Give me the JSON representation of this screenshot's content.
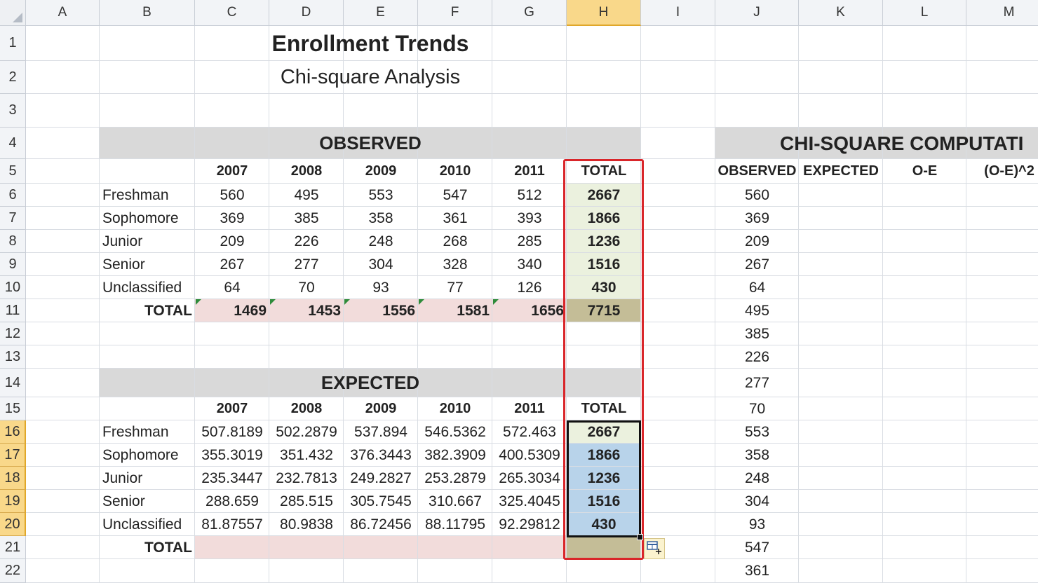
{
  "columns": [
    "A",
    "B",
    "C",
    "D",
    "E",
    "F",
    "G",
    "H",
    "I",
    "J",
    "K",
    "L",
    "M"
  ],
  "selected_column": "H",
  "rows": [
    "1",
    "2",
    "3",
    "4",
    "5",
    "6",
    "7",
    "8",
    "9",
    "10",
    "11",
    "12",
    "13",
    "14",
    "15",
    "16",
    "17",
    "18",
    "19",
    "20",
    "21",
    "22"
  ],
  "selected_rows": [
    "16",
    "17",
    "18",
    "19",
    "20"
  ],
  "title": "Enrollment Trends",
  "subtitle": "Chi-square Analysis",
  "observed": {
    "heading": "OBSERVED",
    "headers": [
      "2007",
      "2008",
      "2009",
      "2010",
      "2011",
      "TOTAL"
    ],
    "rows": [
      {
        "label": "Freshman",
        "values": [
          "560",
          "495",
          "553",
          "547",
          "512"
        ],
        "total": "2667"
      },
      {
        "label": "Sophomore",
        "values": [
          "369",
          "385",
          "358",
          "361",
          "393"
        ],
        "total": "1866"
      },
      {
        "label": "Junior",
        "values": [
          "209",
          "226",
          "248",
          "268",
          "285"
        ],
        "total": "1236"
      },
      {
        "label": "Senior",
        "values": [
          "267",
          "277",
          "304",
          "328",
          "340"
        ],
        "total": "1516"
      },
      {
        "label": "Unclassified",
        "values": [
          "64",
          "70",
          "93",
          "77",
          "126"
        ],
        "total": "430"
      }
    ],
    "total_label": "TOTAL",
    "col_totals": [
      "1469",
      "1453",
      "1556",
      "1581",
      "1656"
    ],
    "grand_total": "7715"
  },
  "expected": {
    "heading": "EXPECTED",
    "headers": [
      "2007",
      "2008",
      "2009",
      "2010",
      "2011",
      "TOTAL"
    ],
    "rows": [
      {
        "label": "Freshman",
        "values": [
          "507.8189",
          "502.2879",
          "537.894",
          "546.5362",
          "572.463"
        ],
        "total": "2667"
      },
      {
        "label": "Sophomore",
        "values": [
          "355.3019",
          "351.432",
          "376.3443",
          "382.3909",
          "400.5309"
        ],
        "total": "1866"
      },
      {
        "label": "Junior",
        "values": [
          "235.3447",
          "232.7813",
          "249.2827",
          "253.2879",
          "265.3034"
        ],
        "total": "1236"
      },
      {
        "label": "Senior",
        "values": [
          "288.659",
          "285.515",
          "305.7545",
          "310.667",
          "325.4045"
        ],
        "total": "1516"
      },
      {
        "label": "Unclassified",
        "values": [
          "81.87557",
          "80.9838",
          "86.72456",
          "88.11795",
          "92.29812"
        ],
        "total": "430"
      }
    ],
    "total_label": "TOTAL"
  },
  "chi": {
    "heading": "CHI-SQUARE COMPUTATI",
    "headers": [
      "OBSERVED",
      "EXPECTED",
      "O-E",
      "(O-E)^2"
    ],
    "observed_values": [
      "560",
      "369",
      "209",
      "267",
      "64",
      "495",
      "385",
      "226",
      "277",
      "70",
      "553",
      "358",
      "248",
      "304",
      "93",
      "547",
      "361"
    ]
  },
  "colors": {
    "header_gray": "#d9d9d9",
    "total_pink": "#f2dcdb",
    "total_tan": "#c4bd97",
    "total_col_green": "#ebf1de",
    "selection_blue": "#b8d3ea",
    "highlight_red": "#d9262a"
  },
  "icons": {
    "autofill": "autofill-options-icon"
  }
}
